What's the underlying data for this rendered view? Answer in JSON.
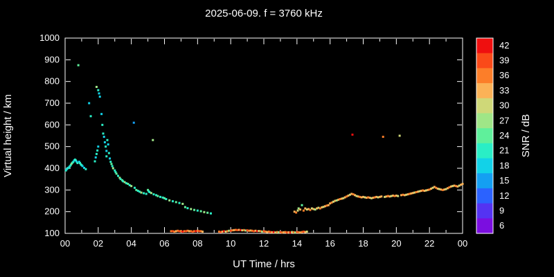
{
  "colors": {
    "background": "#000000",
    "foreground": "#ffffff",
    "axis": "#ffffff"
  },
  "chart_data": {
    "type": "scatter",
    "title": "2025-06-09. f = 3760 kHz",
    "xlabel": "UT Time / hrs",
    "ylabel": "Virtual height / km",
    "colorbar_label": "SNR / dB",
    "xlim": [
      0,
      24
    ],
    "ylim": [
      100,
      1000
    ],
    "x_ticks": [
      0,
      2,
      4,
      6,
      8,
      10,
      12,
      14,
      16,
      18,
      20,
      22,
      24
    ],
    "x_tick_labels": [
      "00",
      "02",
      "04",
      "06",
      "08",
      "10",
      "12",
      "14",
      "16",
      "18",
      "20",
      "22",
      "00"
    ],
    "y_ticks": [
      100,
      200,
      300,
      400,
      500,
      600,
      700,
      800,
      900,
      1000
    ],
    "y_tick_labels": [
      "100",
      "200",
      "300",
      "400",
      "500",
      "600",
      "700",
      "800",
      "900",
      "1000"
    ],
    "colorbar_ticks": [
      42,
      39,
      36,
      33,
      30,
      27,
      24,
      21,
      18,
      15,
      12,
      9,
      6
    ],
    "colormap": [
      {
        "v": 6,
        "c": "#7b0ee0"
      },
      {
        "v": 9,
        "c": "#5433f2"
      },
      {
        "v": 12,
        "c": "#2b62ff"
      },
      {
        "v": 15,
        "c": "#149ff2"
      },
      {
        "v": 18,
        "c": "#12d2e8"
      },
      {
        "v": 21,
        "c": "#2aeec6"
      },
      {
        "v": 24,
        "c": "#5ff09b"
      },
      {
        "v": 27,
        "c": "#9fe687"
      },
      {
        "v": 30,
        "c": "#cfd878"
      },
      {
        "v": 33,
        "c": "#fbb257"
      },
      {
        "v": 36,
        "c": "#fc7e29"
      },
      {
        "v": 39,
        "c": "#fa4a19"
      },
      {
        "v": 42,
        "c": "#ef0f0f"
      }
    ],
    "points": [
      [
        0.05,
        390,
        20
      ],
      [
        0.1,
        396,
        19
      ],
      [
        0.15,
        400,
        21
      ],
      [
        0.2,
        402,
        20
      ],
      [
        0.25,
        406,
        19
      ],
      [
        0.3,
        410,
        21
      ],
      [
        0.35,
        416,
        20
      ],
      [
        0.4,
        422,
        26
      ],
      [
        0.45,
        426,
        21
      ],
      [
        0.5,
        430,
        20
      ],
      [
        0.55,
        436,
        19
      ],
      [
        0.6,
        440,
        21
      ],
      [
        0.65,
        436,
        20
      ],
      [
        0.7,
        430,
        18
      ],
      [
        0.75,
        424,
        20
      ],
      [
        0.8,
        875,
        24
      ],
      [
        0.85,
        430,
        19
      ],
      [
        0.9,
        424,
        21
      ],
      [
        0.95,
        418,
        20
      ],
      [
        1.0,
        414,
        20
      ],
      [
        1.05,
        410,
        19
      ],
      [
        1.15,
        402,
        19
      ],
      [
        1.25,
        396,
        20
      ],
      [
        1.45,
        700,
        18
      ],
      [
        1.55,
        640,
        20
      ],
      [
        1.8,
        432,
        20
      ],
      [
        1.85,
        450,
        19
      ],
      [
        1.9,
        775,
        26
      ],
      [
        1.9,
        466,
        21
      ],
      [
        1.95,
        482,
        20
      ],
      [
        2.0,
        760,
        20
      ],
      [
        2.0,
        500,
        19
      ],
      [
        2.05,
        745,
        19
      ],
      [
        2.1,
        730,
        18
      ],
      [
        2.2,
        650,
        19
      ],
      [
        2.25,
        600,
        20
      ],
      [
        2.3,
        560,
        21
      ],
      [
        2.35,
        545,
        19
      ],
      [
        2.4,
        520,
        18
      ],
      [
        2.45,
        500,
        20
      ],
      [
        2.5,
        480,
        19
      ],
      [
        2.5,
        455,
        21
      ],
      [
        2.55,
        530,
        20
      ],
      [
        2.6,
        510,
        19
      ],
      [
        2.65,
        470,
        20
      ],
      [
        2.7,
        445,
        18
      ],
      [
        2.75,
        430,
        21
      ],
      [
        2.8,
        420,
        24
      ],
      [
        2.85,
        410,
        20
      ],
      [
        2.9,
        400,
        26
      ],
      [
        3.0,
        390,
        21
      ],
      [
        3.05,
        382,
        20
      ],
      [
        3.1,
        375,
        24
      ],
      [
        3.2,
        365,
        21
      ],
      [
        3.3,
        356,
        26
      ],
      [
        3.35,
        350,
        20
      ],
      [
        3.45,
        345,
        24
      ],
      [
        3.5,
        340,
        21
      ],
      [
        3.6,
        336,
        26
      ],
      [
        3.7,
        331,
        20
      ],
      [
        3.8,
        328,
        24
      ],
      [
        3.9,
        322,
        21
      ],
      [
        4.0,
        318,
        26
      ],
      [
        4.15,
        610,
        15
      ],
      [
        4.2,
        310,
        20
      ],
      [
        4.3,
        300,
        24
      ],
      [
        4.4,
        296,
        21
      ],
      [
        4.5,
        292,
        20
      ],
      [
        4.6,
        288,
        26
      ],
      [
        4.75,
        285,
        21
      ],
      [
        4.9,
        282,
        20
      ],
      [
        5.0,
        300,
        24
      ],
      [
        5.05,
        294,
        21
      ],
      [
        5.1,
        290,
        20
      ],
      [
        5.2,
        286,
        26
      ],
      [
        5.3,
        530,
        26
      ],
      [
        5.35,
        280,
        21
      ],
      [
        5.5,
        276,
        20
      ],
      [
        5.6,
        272,
        24
      ],
      [
        5.75,
        268,
        21
      ],
      [
        5.9,
        265,
        20
      ],
      [
        6.0,
        262,
        24
      ],
      [
        6.1,
        258,
        21
      ],
      [
        6.3,
        252,
        26
      ],
      [
        6.5,
        248,
        21
      ],
      [
        6.7,
        244,
        24
      ],
      [
        6.9,
        240,
        21
      ],
      [
        7.1,
        236,
        26
      ],
      [
        7.25,
        221,
        24
      ],
      [
        7.4,
        216,
        21
      ],
      [
        7.6,
        212,
        26
      ],
      [
        7.8,
        208,
        24
      ],
      [
        8.0,
        205,
        21
      ],
      [
        8.2,
        202,
        24
      ],
      [
        8.4,
        198,
        26
      ],
      [
        8.6,
        195,
        24
      ],
      [
        8.8,
        192,
        21
      ],
      [
        6.4,
        110,
        36
      ],
      [
        6.5,
        110,
        39
      ],
      [
        6.6,
        108,
        36
      ],
      [
        6.7,
        110,
        33
      ],
      [
        6.8,
        112,
        36
      ],
      [
        6.9,
        110,
        39
      ],
      [
        7.0,
        110,
        36
      ],
      [
        7.1,
        108,
        42
      ],
      [
        7.2,
        110,
        36
      ],
      [
        7.3,
        110,
        39
      ],
      [
        7.4,
        112,
        36
      ],
      [
        7.5,
        110,
        33
      ],
      [
        7.6,
        110,
        36
      ],
      [
        7.7,
        108,
        39
      ],
      [
        7.8,
        110,
        36
      ],
      [
        7.9,
        110,
        42
      ],
      [
        8.0,
        112,
        36
      ],
      [
        8.1,
        110,
        39
      ],
      [
        8.2,
        110,
        36
      ],
      [
        8.3,
        108,
        33
      ],
      [
        9.3,
        108,
        36
      ],
      [
        9.4,
        106,
        39
      ],
      [
        9.5,
        108,
        33
      ],
      [
        9.6,
        110,
        42
      ],
      [
        9.7,
        108,
        30
      ],
      [
        9.8,
        110,
        36
      ],
      [
        9.9,
        112,
        27
      ],
      [
        10.0,
        112,
        39
      ],
      [
        10.1,
        114,
        36
      ],
      [
        10.2,
        115,
        33
      ],
      [
        10.3,
        116,
        36
      ],
      [
        10.4,
        115,
        39
      ],
      [
        10.5,
        116,
        33
      ],
      [
        10.6,
        115,
        42
      ],
      [
        10.7,
        114,
        30
      ],
      [
        10.8,
        115,
        36
      ],
      [
        10.9,
        113,
        27
      ],
      [
        11.0,
        114,
        39
      ],
      [
        11.1,
        112,
        36
      ],
      [
        11.2,
        113,
        33
      ],
      [
        11.3,
        112,
        36
      ],
      [
        11.4,
        110,
        39
      ],
      [
        11.5,
        112,
        33
      ],
      [
        11.6,
        110,
        42
      ],
      [
        11.7,
        111,
        30
      ],
      [
        11.8,
        110,
        36
      ],
      [
        11.9,
        108,
        27
      ],
      [
        12.0,
        110,
        39
      ],
      [
        12.1,
        108,
        36
      ],
      [
        12.2,
        106,
        33
      ],
      [
        12.3,
        108,
        36
      ],
      [
        12.4,
        106,
        39
      ],
      [
        12.5,
        105,
        33
      ],
      [
        12.6,
        106,
        42
      ],
      [
        12.7,
        104,
        30
      ],
      [
        12.8,
        106,
        36
      ],
      [
        12.9,
        105,
        27
      ],
      [
        13.0,
        106,
        39
      ],
      [
        13.1,
        104,
        36
      ],
      [
        13.2,
        105,
        33
      ],
      [
        13.3,
        106,
        36
      ],
      [
        13.4,
        104,
        39
      ],
      [
        13.5,
        105,
        33
      ],
      [
        13.6,
        104,
        42
      ],
      [
        13.7,
        106,
        30
      ],
      [
        13.8,
        105,
        36
      ],
      [
        13.9,
        104,
        27
      ],
      [
        14.0,
        106,
        39
      ],
      [
        14.1,
        105,
        36
      ],
      [
        14.2,
        104,
        33
      ],
      [
        14.3,
        106,
        36
      ],
      [
        14.4,
        108,
        39
      ],
      [
        14.5,
        106,
        33
      ],
      [
        14.6,
        108,
        30
      ],
      [
        13.85,
        200,
        33
      ],
      [
        13.95,
        196,
        36
      ],
      [
        14.05,
        205,
        30
      ],
      [
        14.1,
        215,
        27
      ],
      [
        14.2,
        210,
        33
      ],
      [
        14.3,
        230,
        24
      ],
      [
        14.4,
        205,
        36
      ],
      [
        14.5,
        215,
        33
      ],
      [
        14.6,
        210,
        30
      ],
      [
        14.7,
        212,
        33
      ],
      [
        14.8,
        208,
        36
      ],
      [
        14.9,
        215,
        30
      ],
      [
        15.0,
        212,
        33
      ],
      [
        15.1,
        210,
        27
      ],
      [
        15.2,
        215,
        33
      ],
      [
        15.3,
        218,
        30
      ],
      [
        15.4,
        215,
        36
      ],
      [
        15.5,
        220,
        33
      ],
      [
        15.6,
        222,
        30
      ],
      [
        15.7,
        225,
        33
      ],
      [
        15.8,
        228,
        36
      ],
      [
        15.9,
        230,
        33
      ],
      [
        16.0,
        238,
        33
      ],
      [
        16.1,
        242,
        36
      ],
      [
        16.2,
        246,
        30
      ],
      [
        16.3,
        250,
        33
      ],
      [
        16.4,
        252,
        27
      ],
      [
        16.5,
        255,
        33
      ],
      [
        16.6,
        258,
        36
      ],
      [
        16.7,
        260,
        33
      ],
      [
        16.8,
        262,
        30
      ],
      [
        16.9,
        266,
        33
      ],
      [
        17.0,
        270,
        36
      ],
      [
        17.1,
        274,
        33
      ],
      [
        17.2,
        278,
        30
      ],
      [
        17.3,
        282,
        33
      ],
      [
        17.35,
        555,
        42
      ],
      [
        17.4,
        280,
        36
      ],
      [
        17.5,
        276,
        33
      ],
      [
        17.6,
        272,
        30
      ],
      [
        17.7,
        270,
        33
      ],
      [
        17.8,
        268,
        36
      ],
      [
        17.9,
        266,
        33
      ],
      [
        18.0,
        268,
        33
      ],
      [
        18.1,
        266,
        30
      ],
      [
        18.2,
        264,
        33
      ],
      [
        18.3,
        266,
        36
      ],
      [
        18.4,
        264,
        33
      ],
      [
        18.5,
        262,
        30
      ],
      [
        18.6,
        264,
        33
      ],
      [
        18.7,
        266,
        36
      ],
      [
        18.8,
        268,
        33
      ],
      [
        18.9,
        266,
        30
      ],
      [
        19.0,
        268,
        33
      ],
      [
        19.1,
        270,
        33
      ],
      [
        19.2,
        545,
        36
      ],
      [
        19.3,
        268,
        30
      ],
      [
        19.4,
        270,
        33
      ],
      [
        19.5,
        272,
        36
      ],
      [
        19.6,
        270,
        33
      ],
      [
        19.7,
        272,
        30
      ],
      [
        19.8,
        274,
        33
      ],
      [
        19.9,
        272,
        36
      ],
      [
        20.0,
        274,
        33
      ],
      [
        20.1,
        272,
        30
      ],
      [
        20.2,
        550,
        30
      ],
      [
        20.3,
        276,
        33
      ],
      [
        20.4,
        278,
        36
      ],
      [
        20.5,
        276,
        33
      ],
      [
        20.6,
        278,
        30
      ],
      [
        20.7,
        280,
        33
      ],
      [
        20.8,
        282,
        36
      ],
      [
        20.9,
        284,
        33
      ],
      [
        21.0,
        286,
        33
      ],
      [
        21.1,
        288,
        30
      ],
      [
        21.2,
        290,
        36
      ],
      [
        21.3,
        292,
        33
      ],
      [
        21.4,
        294,
        30
      ],
      [
        21.5,
        296,
        33
      ],
      [
        21.6,
        298,
        36
      ],
      [
        21.7,
        296,
        33
      ],
      [
        21.8,
        298,
        30
      ],
      [
        21.9,
        300,
        33
      ],
      [
        22.0,
        302,
        36
      ],
      [
        22.1,
        306,
        33
      ],
      [
        22.2,
        310,
        30
      ],
      [
        22.3,
        314,
        33
      ],
      [
        22.4,
        310,
        36
      ],
      [
        22.5,
        306,
        33
      ],
      [
        22.6,
        304,
        30
      ],
      [
        22.7,
        302,
        33
      ],
      [
        22.8,
        300,
        36
      ],
      [
        22.9,
        302,
        33
      ],
      [
        23.0,
        304,
        30
      ],
      [
        23.1,
        308,
        33
      ],
      [
        23.2,
        312,
        36
      ],
      [
        23.3,
        316,
        33
      ],
      [
        23.4,
        318,
        30
      ],
      [
        23.5,
        320,
        33
      ],
      [
        23.6,
        318,
        36
      ],
      [
        23.7,
        316,
        33
      ],
      [
        23.8,
        320,
        30
      ],
      [
        23.9,
        324,
        33
      ],
      [
        24.0,
        328,
        33
      ]
    ]
  }
}
